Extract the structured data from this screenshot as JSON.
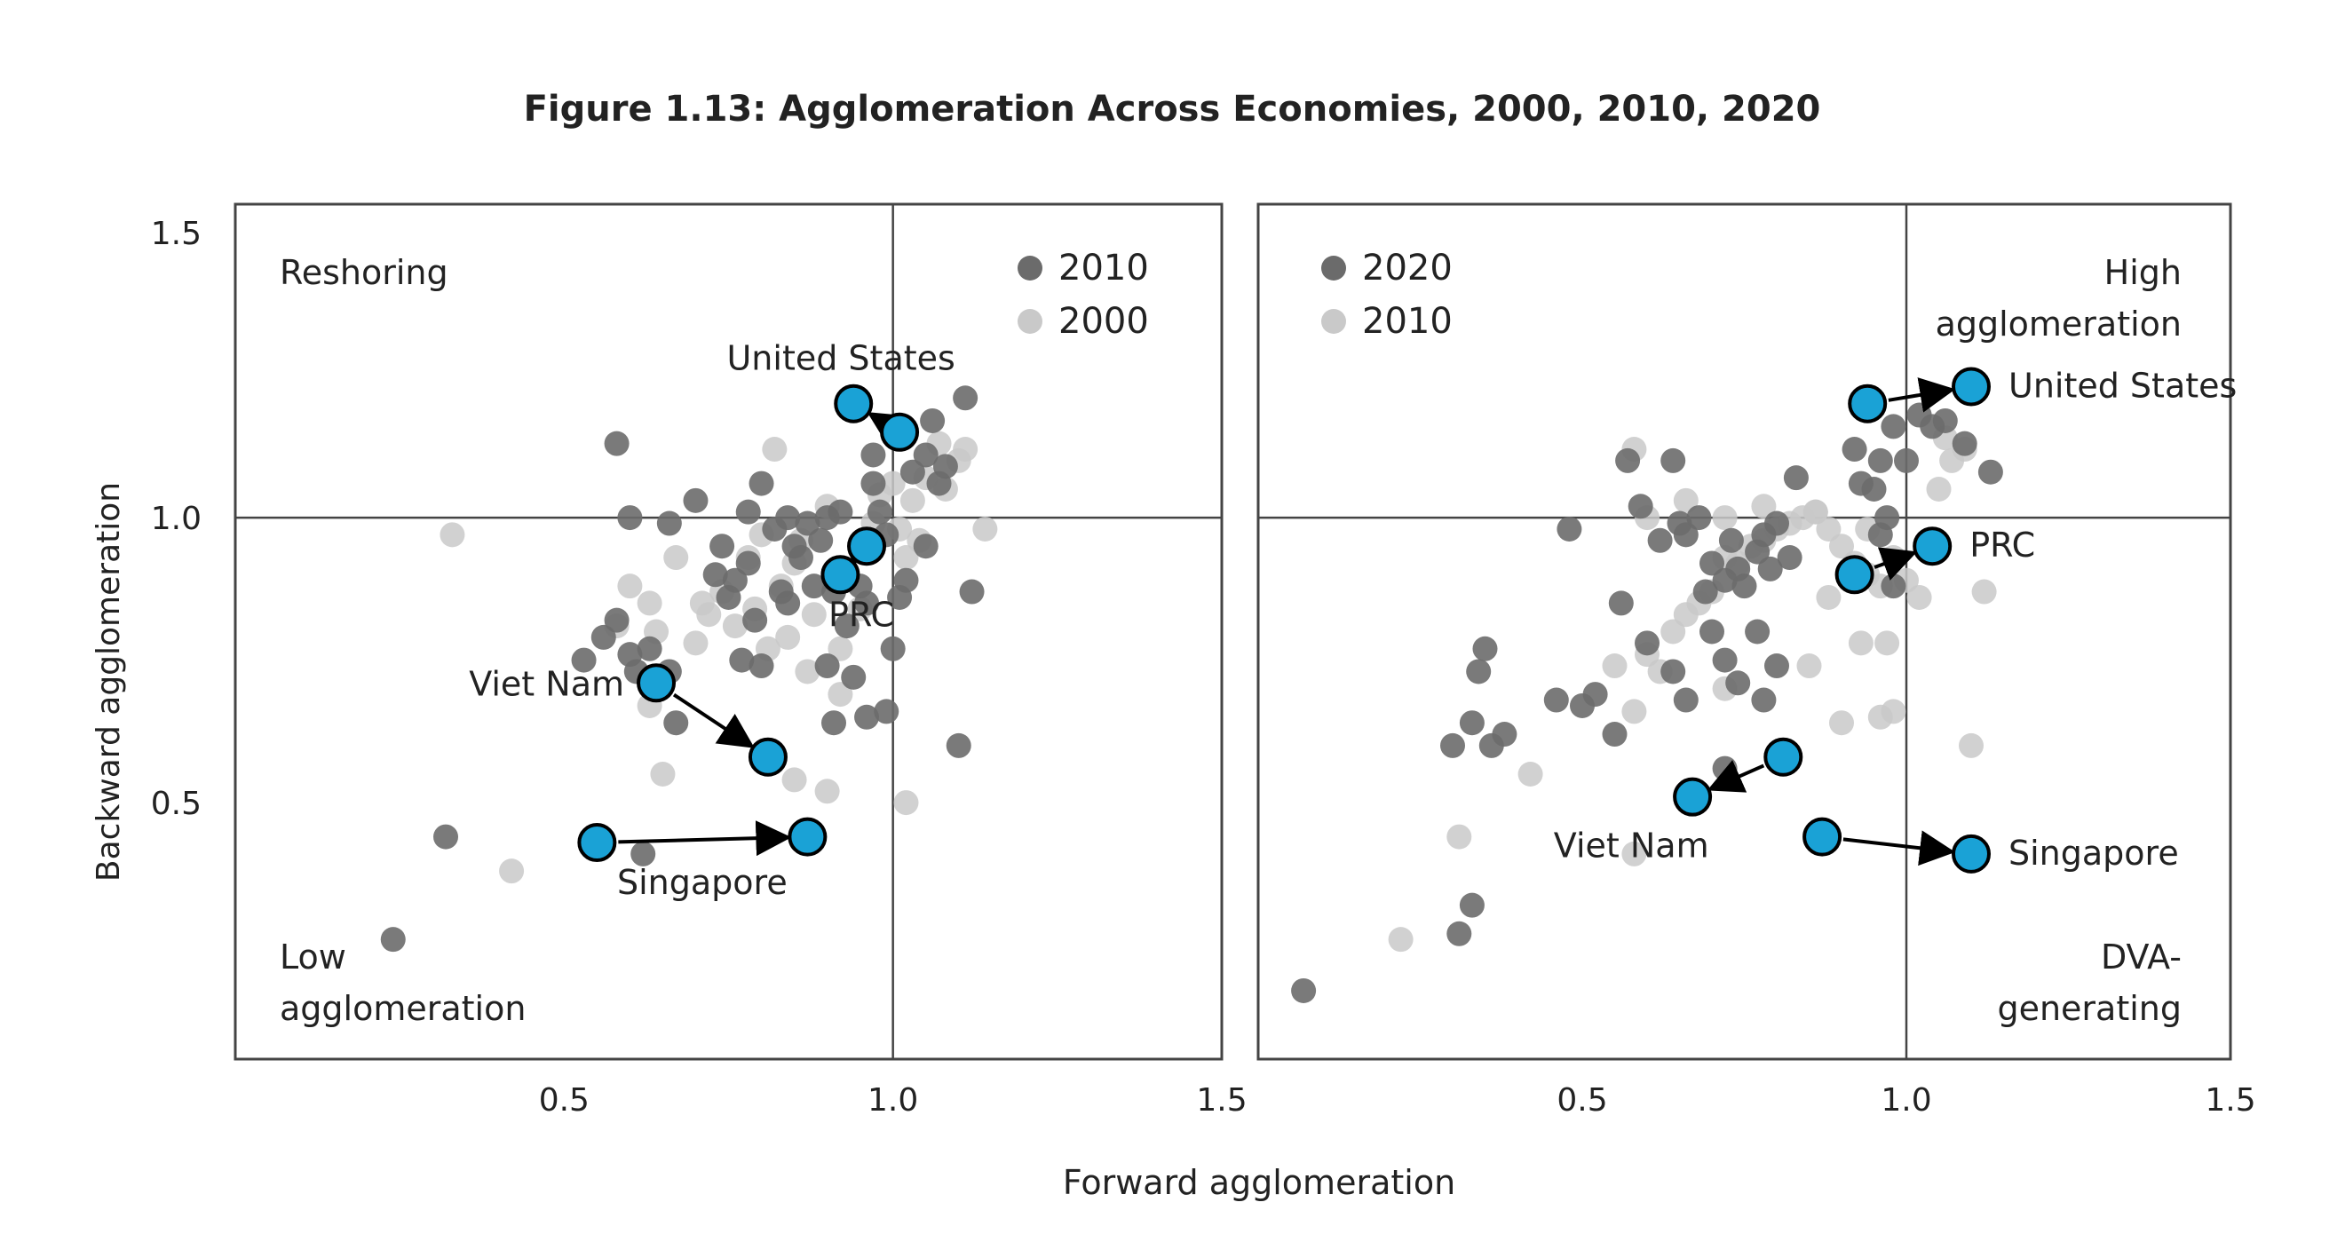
{
  "figure": {
    "title": "Figure 1.13: Agglomeration Across Economies, 2000, 2010, 2020",
    "xlabel": "Forward agglomeration",
    "ylabel": "Backward agglomeration"
  },
  "colors": {
    "point_new": "#6b6b6b",
    "point_old": "#c9c9c9",
    "highlight": "#1aa2d6",
    "frame": "#444444",
    "text": "#222222"
  },
  "chart_data": [
    {
      "type": "scatter",
      "panel": "left",
      "xlim": [
        0.0,
        1.5
      ],
      "ylim": [
        0.05,
        1.55
      ],
      "xticks": [
        "0.5",
        "1.0",
        "1.5"
      ],
      "yticks": [
        "0.5",
        "1.0",
        "1.5"
      ],
      "reference_lines": {
        "x": 1.0,
        "y": 1.0
      },
      "quadrant_labels": {
        "top_left": "Reshoring",
        "bottom_left_line1": "Low",
        "bottom_left_line2": "agglomeration"
      },
      "legend": [
        {
          "name": "2010",
          "role": "new"
        },
        {
          "name": "2000",
          "role": "old"
        }
      ],
      "series": [
        {
          "name": "2010",
          "role": "new",
          "points": [
            [
              0.24,
              0.26
            ],
            [
              0.32,
              0.44
            ],
            [
              0.53,
              0.75
            ],
            [
              0.56,
              0.79
            ],
            [
              0.58,
              0.82
            ],
            [
              0.6,
              0.76
            ],
            [
              0.61,
              0.73
            ],
            [
              0.63,
              0.77
            ],
            [
              0.66,
              0.73
            ],
            [
              0.67,
              0.64
            ],
            [
              0.62,
              0.41
            ],
            [
              0.58,
              1.13
            ],
            [
              0.6,
              1.0
            ],
            [
              0.66,
              0.99
            ],
            [
              0.7,
              1.03
            ],
            [
              0.73,
              0.9
            ],
            [
              0.74,
              0.95
            ],
            [
              0.75,
              0.86
            ],
            [
              0.76,
              0.89
            ],
            [
              0.78,
              0.92
            ],
            [
              0.79,
              0.82
            ],
            [
              0.77,
              0.75
            ],
            [
              0.8,
              0.74
            ],
            [
              0.8,
              1.06
            ],
            [
              0.82,
              0.98
            ],
            [
              0.83,
              0.87
            ],
            [
              0.84,
              0.85
            ],
            [
              0.85,
              0.95
            ],
            [
              0.86,
              0.93
            ],
            [
              0.87,
              0.99
            ],
            [
              0.88,
              0.88
            ],
            [
              0.89,
              0.96
            ],
            [
              0.9,
              1.0
            ],
            [
              0.91,
              0.87
            ],
            [
              0.93,
              0.81
            ],
            [
              0.94,
              0.72
            ],
            [
              0.95,
              0.88
            ],
            [
              0.96,
              0.85
            ],
            [
              0.97,
              1.06
            ],
            [
              0.98,
              1.01
            ],
            [
              0.99,
              0.97
            ],
            [
              1.0,
              0.77
            ],
            [
              1.01,
              0.86
            ],
            [
              1.02,
              0.89
            ],
            [
              1.03,
              1.08
            ],
            [
              1.05,
              1.11
            ],
            [
              1.06,
              1.17
            ],
            [
              1.07,
              1.06
            ],
            [
              1.08,
              1.09
            ],
            [
              1.11,
              1.21
            ],
            [
              1.05,
              0.95
            ],
            [
              1.12,
              0.87
            ],
            [
              1.1,
              0.6
            ],
            [
              0.96,
              0.65
            ],
            [
              0.91,
              0.64
            ],
            [
              0.9,
              0.74
            ],
            [
              0.99,
              0.66
            ],
            [
              0.97,
              1.11
            ],
            [
              0.78,
              1.01
            ],
            [
              0.84,
              1.0
            ],
            [
              0.92,
              1.01
            ]
          ]
        },
        {
          "name": "2000",
          "role": "old",
          "points": [
            [
              0.33,
              0.97
            ],
            [
              0.42,
              0.38
            ],
            [
              0.58,
              0.81
            ],
            [
              0.6,
              0.88
            ],
            [
              0.63,
              0.67
            ],
            [
              0.64,
              0.8
            ],
            [
              0.63,
              0.85
            ],
            [
              0.65,
              0.55
            ],
            [
              0.67,
              0.93
            ],
            [
              0.7,
              0.78
            ],
            [
              0.71,
              0.85
            ],
            [
              0.72,
              0.83
            ],
            [
              0.74,
              0.87
            ],
            [
              0.76,
              0.81
            ],
            [
              0.78,
              0.93
            ],
            [
              0.79,
              0.84
            ],
            [
              0.8,
              0.97
            ],
            [
              0.81,
              0.77
            ],
            [
              0.82,
              1.12
            ],
            [
              0.83,
              0.88
            ],
            [
              0.84,
              0.79
            ],
            [
              0.85,
              0.92
            ],
            [
              0.86,
              0.96
            ],
            [
              0.87,
              0.73
            ],
            [
              0.88,
              0.83
            ],
            [
              0.9,
              1.02
            ],
            [
              0.92,
              0.77
            ],
            [
              0.93,
              0.9
            ],
            [
              0.95,
              0.95
            ],
            [
              0.97,
              0.99
            ],
            [
              0.98,
              1.04
            ],
            [
              1.0,
              1.06
            ],
            [
              1.01,
              0.98
            ],
            [
              1.02,
              0.93
            ],
            [
              1.03,
              1.03
            ],
            [
              1.05,
              1.07
            ],
            [
              1.07,
              1.13
            ],
            [
              1.1,
              1.1
            ],
            [
              1.11,
              1.12
            ],
            [
              1.14,
              0.98
            ],
            [
              1.02,
              0.5
            ],
            [
              0.9,
              0.52
            ],
            [
              0.85,
              0.54
            ],
            [
              0.92,
              0.69
            ],
            [
              0.95,
              0.84
            ],
            [
              1.04,
              0.96
            ],
            [
              1.08,
              1.05
            ]
          ]
        }
      ],
      "highlighted": [
        {
          "name": "United States",
          "from": [
            1.01,
            1.15
          ],
          "to": [
            0.94,
            1.2
          ],
          "label_pos": "above"
        },
        {
          "name": "PRC",
          "from": [
            0.96,
            0.95
          ],
          "to": [
            0.92,
            0.9
          ],
          "label_pos": "below"
        },
        {
          "name": "Viet Nam",
          "from": [
            0.64,
            0.71
          ],
          "to": [
            0.81,
            0.58
          ],
          "label_pos": "left"
        },
        {
          "name": "Singapore",
          "from": [
            0.55,
            0.43
          ],
          "to": [
            0.87,
            0.44
          ],
          "label_pos": "below"
        }
      ]
    },
    {
      "type": "scatter",
      "panel": "right",
      "xlim": [
        0.0,
        1.5
      ],
      "ylim": [
        0.05,
        1.55
      ],
      "xticks": [
        "0.5",
        "1.0",
        "1.5"
      ],
      "yticks": [],
      "reference_lines": {
        "x": 1.0,
        "y": 1.0
      },
      "quadrant_labels": {
        "top_right_line1": "High",
        "top_right_line2": "agglomeration",
        "bottom_right_line1": "DVA-",
        "bottom_right_line2": "generating"
      },
      "legend": [
        {
          "name": "2020",
          "role": "new"
        },
        {
          "name": "2010",
          "role": "old"
        }
      ],
      "series": [
        {
          "name": "2020",
          "role": "new",
          "points": [
            [
              0.07,
              0.17
            ],
            [
              0.3,
              0.6
            ],
            [
              0.33,
              0.64
            ],
            [
              0.36,
              0.6
            ],
            [
              0.38,
              0.62
            ],
            [
              0.34,
              0.73
            ],
            [
              0.35,
              0.77
            ],
            [
              0.31,
              0.27
            ],
            [
              0.33,
              0.32
            ],
            [
              0.46,
              0.68
            ],
            [
              0.5,
              0.67
            ],
            [
              0.52,
              0.69
            ],
            [
              0.55,
              0.62
            ],
            [
              0.56,
              0.85
            ],
            [
              0.6,
              0.78
            ],
            [
              0.62,
              0.96
            ],
            [
              0.65,
              0.99
            ],
            [
              0.66,
              0.97
            ],
            [
              0.68,
              1.0
            ],
            [
              0.69,
              0.87
            ],
            [
              0.7,
              0.92
            ],
            [
              0.72,
              0.89
            ],
            [
              0.73,
              0.96
            ],
            [
              0.74,
              0.91
            ],
            [
              0.75,
              0.88
            ],
            [
              0.77,
              0.94
            ],
            [
              0.78,
              0.97
            ],
            [
              0.79,
              0.91
            ],
            [
              0.8,
              0.99
            ],
            [
              0.82,
              0.93
            ],
            [
              0.64,
              0.73
            ],
            [
              0.66,
              0.68
            ],
            [
              0.7,
              0.8
            ],
            [
              0.72,
              0.75
            ],
            [
              0.74,
              0.71
            ],
            [
              0.77,
              0.8
            ],
            [
              0.8,
              0.74
            ],
            [
              0.72,
              0.56
            ],
            [
              0.78,
              0.68
            ],
            [
              0.83,
              1.07
            ],
            [
              0.92,
              1.12
            ],
            [
              0.95,
              1.05
            ],
            [
              0.96,
              1.1
            ],
            [
              0.98,
              1.16
            ],
            [
              1.0,
              1.1
            ],
            [
              1.02,
              1.18
            ],
            [
              1.04,
              1.16
            ],
            [
              1.06,
              1.17
            ],
            [
              1.09,
              1.13
            ],
            [
              1.13,
              1.08
            ],
            [
              0.96,
              0.97
            ],
            [
              0.93,
              1.06
            ],
            [
              0.57,
              1.1
            ],
            [
              0.59,
              1.02
            ],
            [
              0.48,
              0.98
            ],
            [
              0.64,
              1.1
            ],
            [
              0.97,
              1.0
            ],
            [
              0.98,
              0.88
            ]
          ]
        },
        {
          "name": "2010",
          "role": "old",
          "points": [
            [
              0.22,
              0.26
            ],
            [
              0.31,
              0.44
            ],
            [
              0.42,
              0.55
            ],
            [
              0.58,
              0.41
            ],
            [
              0.55,
              0.74
            ],
            [
              0.58,
              0.66
            ],
            [
              0.6,
              0.76
            ],
            [
              0.62,
              0.73
            ],
            [
              0.64,
              0.8
            ],
            [
              0.66,
              0.83
            ],
            [
              0.68,
              0.85
            ],
            [
              0.7,
              0.87
            ],
            [
              0.72,
              0.93
            ],
            [
              0.74,
              0.92
            ],
            [
              0.76,
              0.95
            ],
            [
              0.78,
              0.96
            ],
            [
              0.8,
              0.98
            ],
            [
              0.82,
              0.99
            ],
            [
              0.84,
              1.0
            ],
            [
              0.86,
              1.01
            ],
            [
              0.88,
              0.98
            ],
            [
              0.9,
              0.95
            ],
            [
              0.92,
              0.92
            ],
            [
              0.94,
              0.9
            ],
            [
              0.96,
              0.88
            ],
            [
              0.98,
              0.93
            ],
            [
              1.0,
              0.89
            ],
            [
              1.02,
              0.86
            ],
            [
              1.05,
              1.05
            ],
            [
              1.07,
              1.1
            ],
            [
              1.09,
              1.12
            ],
            [
              1.1,
              0.6
            ],
            [
              1.12,
              0.87
            ],
            [
              0.88,
              0.86
            ],
            [
              0.85,
              0.74
            ],
            [
              0.9,
              0.64
            ],
            [
              0.93,
              0.78
            ],
            [
              0.97,
              0.78
            ],
            [
              0.58,
              1.12
            ],
            [
              0.6,
              1.0
            ],
            [
              0.66,
              1.03
            ],
            [
              0.72,
              1.0
            ],
            [
              0.78,
              1.02
            ],
            [
              0.86,
              1.01
            ],
            [
              0.94,
              0.98
            ],
            [
              0.98,
              0.66
            ],
            [
              0.96,
              0.65
            ],
            [
              1.06,
              1.14
            ],
            [
              0.72,
              0.7
            ]
          ]
        }
      ],
      "highlighted": [
        {
          "name": "United States",
          "from": [
            0.94,
            1.2
          ],
          "to": [
            1.1,
            1.23
          ],
          "label_pos": "right"
        },
        {
          "name": "PRC",
          "from": [
            0.92,
            0.9
          ],
          "to": [
            1.04,
            0.95
          ],
          "label_pos": "right"
        },
        {
          "name": "Viet Nam",
          "from": [
            0.81,
            0.58
          ],
          "to": [
            0.67,
            0.51
          ],
          "label_pos": "below"
        },
        {
          "name": "Singapore",
          "from": [
            0.87,
            0.44
          ],
          "to": [
            1.1,
            0.41
          ],
          "label_pos": "right"
        }
      ]
    }
  ]
}
